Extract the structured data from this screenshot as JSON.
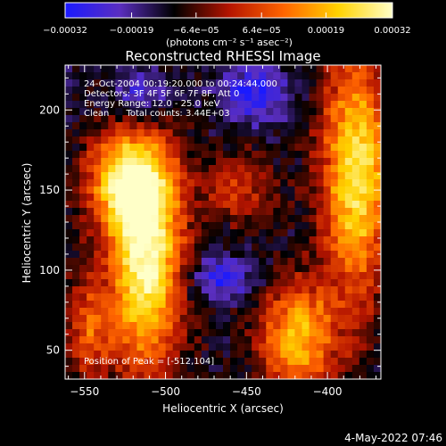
{
  "chart_data": {
    "type": "heatmap",
    "title": "Reconstructed RHESSI Image",
    "xlabel": "Heliocentric X (arcsec)",
    "ylabel": "Heliocentric Y (arcsec)",
    "xlim": [
      -562,
      -367
    ],
    "ylim": [
      32,
      228
    ],
    "xticks": [
      -550,
      -500,
      -450,
      -400
    ],
    "xtick_labels": [
      "−550",
      "−500",
      "−450",
      "−400"
    ],
    "yticks": [
      50,
      100,
      150,
      200
    ],
    "ytick_labels": [
      "50",
      "100",
      "150",
      "200"
    ],
    "colorbar": {
      "range": [
        -0.00032,
        0.00032
      ],
      "ticks": [
        -0.00032,
        -0.00019,
        -6.4e-05,
        6.4e-05,
        0.00019,
        0.00032
      ],
      "tick_labels": [
        "−0.00032",
        "−0.00019",
        "−6.4e−05",
        "6.4e−05",
        "0.00019",
        "0.00032"
      ],
      "unit_label": "(photons cm⁻² s⁻¹ asec⁻²)",
      "colors": [
        "#1a1aff",
        "#5a2ec0",
        "#000000",
        "#b41400",
        "#ff6400",
        "#ffd200",
        "#ffffc8"
      ]
    },
    "annotations": [
      "24-Oct-2004 00:19:20.000 to 00:24:44.000",
      "Detectors: 3F 4F 5F 6F 7F 8F, Att 0",
      "Energy Range: 12.0 - 25.0 keV",
      "Clean      Total counts: 3.44E+03"
    ],
    "peak_label": "Position of Peak = [-512,104]",
    "sources": [
      {
        "x": -512,
        "y": 104,
        "sx": 16,
        "sy": 46,
        "amp": 1.0
      },
      {
        "x": -523,
        "y": 155,
        "sx": 17,
        "sy": 22,
        "amp": 0.85
      },
      {
        "x": -382,
        "y": 160,
        "sx": 15,
        "sy": 52,
        "amp": 0.9
      },
      {
        "x": -418,
        "y": 58,
        "sx": 17,
        "sy": 24,
        "amp": 0.75
      },
      {
        "x": -455,
        "y": 152,
        "sx": 16,
        "sy": 16,
        "amp": 0.35
      },
      {
        "x": -548,
        "y": 62,
        "sx": 10,
        "sy": 22,
        "amp": 0.45
      },
      {
        "x": -465,
        "y": 95,
        "sx": 14,
        "sy": 10,
        "amp": -0.4
      },
      {
        "x": -515,
        "y": 208,
        "sx": 12,
        "sy": 12,
        "amp": -0.35
      },
      {
        "x": -445,
        "y": 210,
        "sx": 14,
        "sy": 12,
        "amp": -0.45
      }
    ]
  },
  "footer": {
    "date": "4-May-2022 07:46"
  }
}
